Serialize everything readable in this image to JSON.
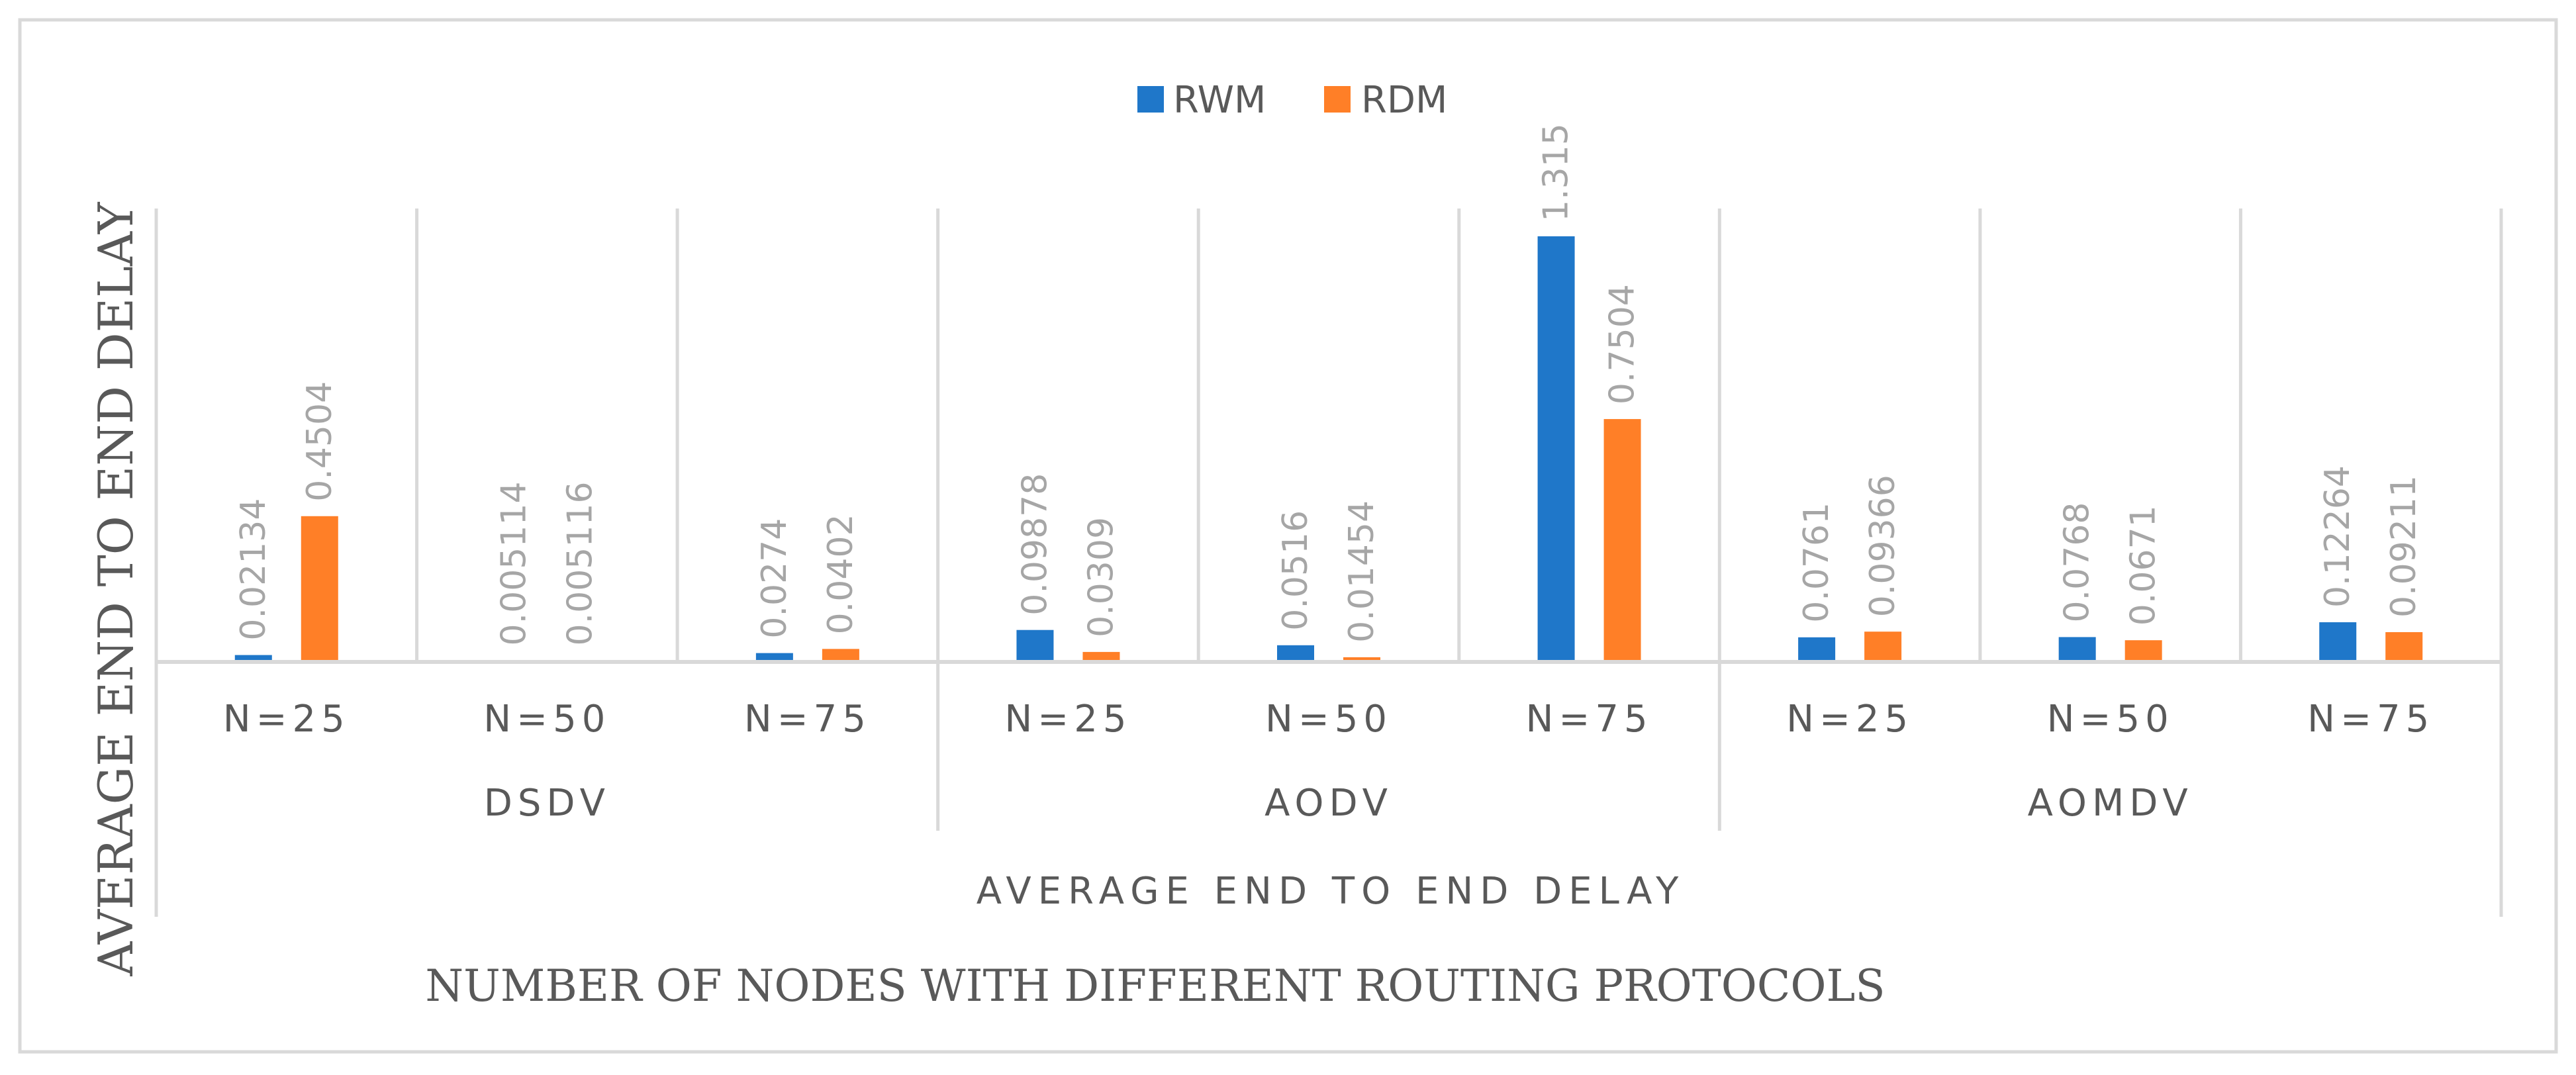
{
  "chart_data": {
    "type": "bar",
    "title": "AVERAGE END TO END DELAY",
    "xlabel": "NUMBER OF NODES WITH DIFFERENT ROUTING PROTOCOLS",
    "ylabel": "AVERAGE END TO END DELAY",
    "legend_position": "top-center",
    "grid": false,
    "ylim": [
      0,
      1.4
    ],
    "groups": [
      {
        "name": "DSDV",
        "categories": [
          "N=25",
          "N=50",
          "N=75"
        ]
      },
      {
        "name": "AODV",
        "categories": [
          "N=25",
          "N=50",
          "N=75"
        ]
      },
      {
        "name": "AOMDV",
        "categories": [
          "N=25",
          "N=50",
          "N=75"
        ]
      }
    ],
    "series": [
      {
        "name": "RWM",
        "color": "#1f77c9",
        "values": [
          0.02134,
          0.005114,
          0.0274,
          0.09878,
          0.0516,
          1.315,
          0.0761,
          0.0768,
          0.12264
        ],
        "labels": [
          "0.02134",
          "0.005114",
          "0.0274",
          "0.09878",
          "0.0516",
          "1.315",
          "0.0761",
          "0.0768",
          "0.12264"
        ]
      },
      {
        "name": "RDM",
        "color": "#ff7f27",
        "values": [
          0.4504,
          0.005116,
          0.0402,
          0.0309,
          0.01454,
          0.7504,
          0.09366,
          0.0671,
          0.09211
        ],
        "labels": [
          "0.4504",
          "0.005116",
          "0.0402",
          "0.0309",
          "0.01454",
          "0.7504",
          "0.09366",
          "0.0671",
          "0.09211"
        ]
      }
    ]
  }
}
